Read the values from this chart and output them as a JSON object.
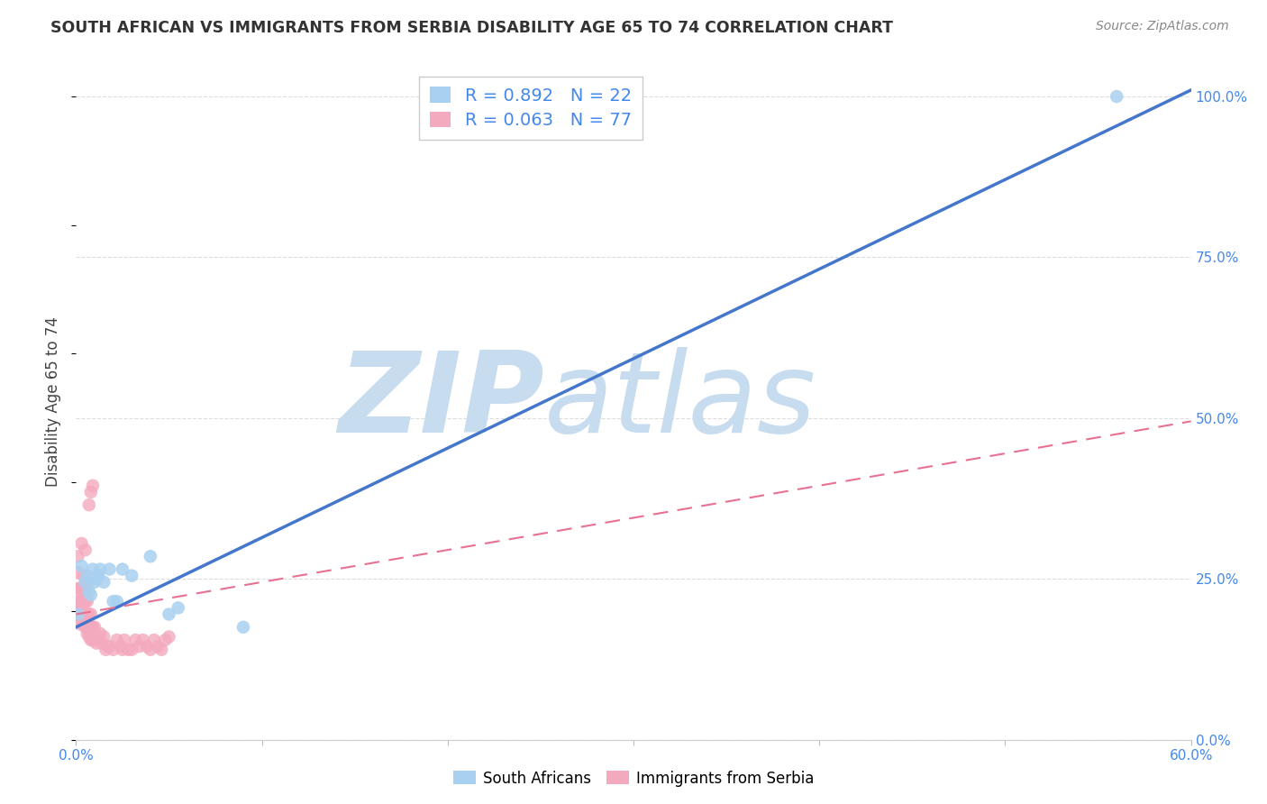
{
  "title": "SOUTH AFRICAN VS IMMIGRANTS FROM SERBIA DISABILITY AGE 65 TO 74 CORRELATION CHART",
  "source": "Source: ZipAtlas.com",
  "ylabel_label": "Disability Age 65 to 74",
  "xlim": [
    0.0,
    0.6
  ],
  "ylim": [
    0.0,
    1.05
  ],
  "blue_R": 0.892,
  "blue_N": 22,
  "pink_R": 0.063,
  "pink_N": 77,
  "blue_color": "#A8D0F0",
  "pink_color": "#F4AABE",
  "blue_line_color": "#4477CC",
  "pink_line_color": "#E87090",
  "watermark_zip": "ZIP",
  "watermark_atlas": "atlas",
  "watermark_color": "#C8DCF0",
  "legend_label_blue": "South Africans",
  "legend_label_pink": "Immigrants from Serbia",
  "blue_scatter_x": [
    0.001,
    0.003,
    0.005,
    0.006,
    0.007,
    0.008,
    0.009,
    0.01,
    0.011,
    0.012,
    0.013,
    0.015,
    0.018,
    0.02,
    0.022,
    0.025,
    0.03,
    0.04,
    0.05,
    0.055,
    0.09,
    0.56
  ],
  "blue_scatter_y": [
    0.195,
    0.27,
    0.245,
    0.255,
    0.23,
    0.225,
    0.265,
    0.245,
    0.25,
    0.255,
    0.265,
    0.245,
    0.265,
    0.215,
    0.215,
    0.265,
    0.255,
    0.285,
    0.195,
    0.205,
    0.175,
    1.0
  ],
  "pink_scatter_x": [
    0.0005,
    0.0005,
    0.001,
    0.001,
    0.001,
    0.001,
    0.001,
    0.0015,
    0.0015,
    0.002,
    0.002,
    0.002,
    0.002,
    0.0025,
    0.0025,
    0.003,
    0.003,
    0.003,
    0.003,
    0.003,
    0.0035,
    0.0035,
    0.004,
    0.004,
    0.004,
    0.004,
    0.004,
    0.0045,
    0.005,
    0.005,
    0.005,
    0.005,
    0.005,
    0.005,
    0.006,
    0.006,
    0.006,
    0.006,
    0.006,
    0.007,
    0.007,
    0.007,
    0.007,
    0.008,
    0.008,
    0.008,
    0.008,
    0.009,
    0.009,
    0.009,
    0.01,
    0.01,
    0.011,
    0.012,
    0.013,
    0.014,
    0.015,
    0.016,
    0.017,
    0.018,
    0.02,
    0.022,
    0.024,
    0.025,
    0.026,
    0.028,
    0.03,
    0.032,
    0.034,
    0.036,
    0.038,
    0.04,
    0.042,
    0.044,
    0.046,
    0.048,
    0.05
  ],
  "pink_scatter_y": [
    0.195,
    0.21,
    0.195,
    0.215,
    0.235,
    0.26,
    0.285,
    0.195,
    0.215,
    0.18,
    0.195,
    0.215,
    0.235,
    0.195,
    0.215,
    0.185,
    0.195,
    0.215,
    0.235,
    0.305,
    0.185,
    0.205,
    0.18,
    0.195,
    0.215,
    0.235,
    0.255,
    0.195,
    0.175,
    0.185,
    0.195,
    0.215,
    0.235,
    0.295,
    0.165,
    0.175,
    0.195,
    0.215,
    0.245,
    0.16,
    0.175,
    0.195,
    0.365,
    0.155,
    0.175,
    0.195,
    0.385,
    0.155,
    0.175,
    0.395,
    0.155,
    0.175,
    0.15,
    0.16,
    0.165,
    0.15,
    0.16,
    0.14,
    0.145,
    0.145,
    0.14,
    0.155,
    0.145,
    0.14,
    0.155,
    0.14,
    0.14,
    0.155,
    0.145,
    0.155,
    0.145,
    0.14,
    0.155,
    0.145,
    0.14,
    0.155,
    0.16
  ],
  "blue_trend_x": [
    0.0,
    0.6
  ],
  "blue_trend_y": [
    0.175,
    1.01
  ],
  "pink_trend_x": [
    0.0,
    0.6
  ],
  "pink_trend_y": [
    0.195,
    0.495
  ],
  "x_tick_vals": [
    0.0,
    0.1,
    0.2,
    0.3,
    0.4,
    0.5,
    0.6
  ],
  "y_tick_vals": [
    0.0,
    0.25,
    0.5,
    0.75,
    1.0
  ],
  "y_tick_labels": [
    "0.0%",
    "25.0%",
    "50.0%",
    "75.0%",
    "100.0%"
  ],
  "grid_color": "#DDDDDD",
  "title_fontsize": 12.5,
  "tick_label_fontsize": 11,
  "right_tick_color": "#4488EE"
}
